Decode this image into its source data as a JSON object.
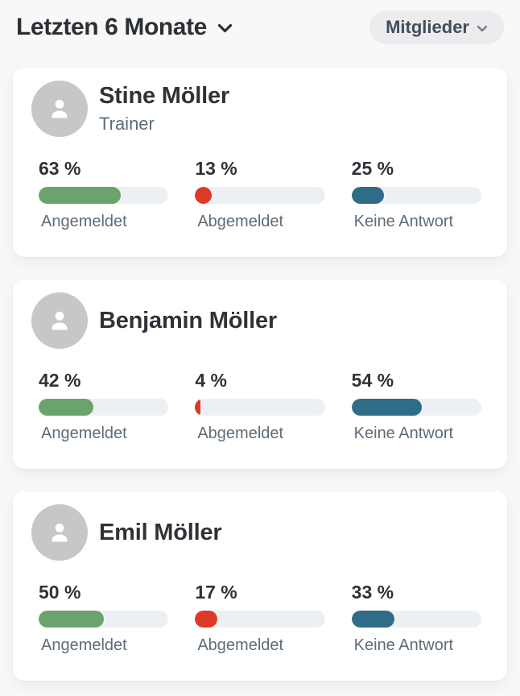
{
  "header": {
    "period_label": "Letzten 6 Monate",
    "filter_label": "Mitglieder"
  },
  "colors": {
    "angemeldet_green": "#6ba36c",
    "abgemeldet_red": "#dc3a27",
    "keine_antwort_teal": "#2f6c88",
    "bar_track": "#edf0f3"
  },
  "members": [
    {
      "name": "Stine Möller",
      "role": "Trainer",
      "stats": [
        {
          "label": "Angemeldet",
          "value": 63,
          "display": "63 %",
          "color": "#6ba36c"
        },
        {
          "label": "Abgemeldet",
          "value": 13,
          "display": "13 %",
          "color": "#dc3a27"
        },
        {
          "label": "Keine Antwort",
          "value": 25,
          "display": "25 %",
          "color": "#2f6c88"
        }
      ]
    },
    {
      "name": "Benjamin Möller",
      "role": "",
      "stats": [
        {
          "label": "Angemeldet",
          "value": 42,
          "display": "42 %",
          "color": "#6ba36c"
        },
        {
          "label": "Abgemeldet",
          "value": 4,
          "display": "4 %",
          "color": "#dc3a27"
        },
        {
          "label": "Keine Antwort",
          "value": 54,
          "display": "54 %",
          "color": "#2f6c88"
        }
      ]
    },
    {
      "name": "Emil Möller",
      "role": "",
      "stats": [
        {
          "label": "Angemeldet",
          "value": 50,
          "display": "50 %",
          "color": "#6ba36c"
        },
        {
          "label": "Abgemeldet",
          "value": 17,
          "display": "17 %",
          "color": "#dc3a27"
        },
        {
          "label": "Keine Antwort",
          "value": 33,
          "display": "33 %",
          "color": "#2f6c88"
        }
      ]
    }
  ]
}
